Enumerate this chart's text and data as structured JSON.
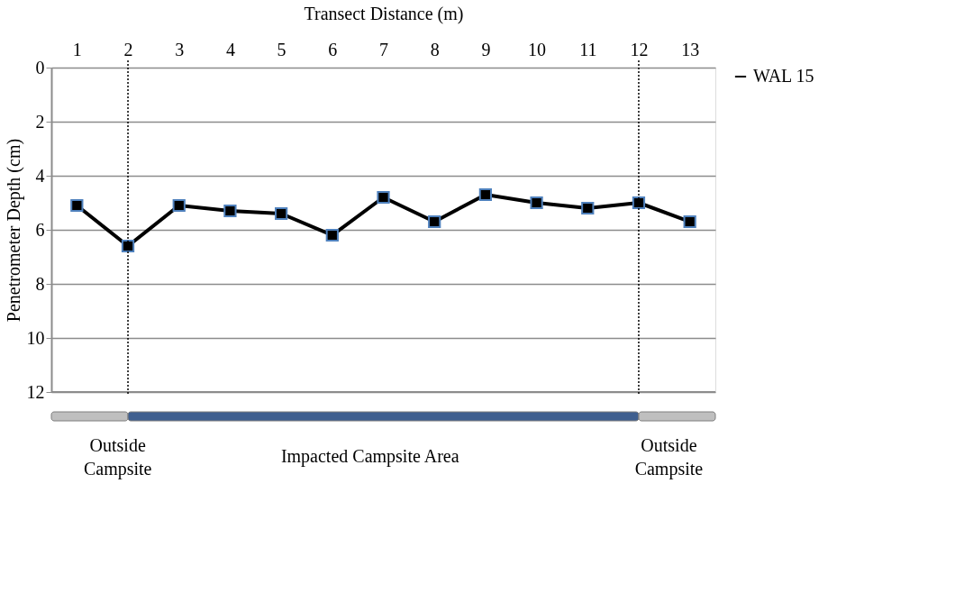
{
  "chart_data": {
    "type": "line",
    "xlabel": "Transect Distance (m)",
    "ylabel": "Penetrometer Depth  (cm)",
    "x": [
      1,
      2,
      3,
      4,
      5,
      6,
      7,
      8,
      9,
      10,
      11,
      12,
      13
    ],
    "series": [
      {
        "name": "WAL 15",
        "color": "#000000",
        "values": [
          5.1,
          6.6,
          5.1,
          5.3,
          5.4,
          6.2,
          4.8,
          5.7,
          4.7,
          5.0,
          5.2,
          5.0,
          5.7
        ]
      }
    ],
    "xlim": [
      0.5,
      13.5
    ],
    "xticks": [
      1,
      2,
      3,
      4,
      5,
      6,
      7,
      8,
      9,
      10,
      11,
      12,
      13
    ],
    "ylim": [
      12,
      0
    ],
    "yticks": [
      0,
      2,
      4,
      6,
      8,
      10,
      12
    ],
    "ref_lines": [
      {
        "axis": "x",
        "value": 2,
        "color": "#000000",
        "line_style": "dotted"
      },
      {
        "axis": "x",
        "value": 12,
        "color": "#000000",
        "line_style": "dotted"
      }
    ],
    "annotations": [
      "Outside\nCampsite",
      "Impacted Campsite Area",
      "Outside\nCampsite"
    ],
    "grid": "y",
    "legend": "right",
    "marker": "square",
    "line_style": "solid"
  }
}
